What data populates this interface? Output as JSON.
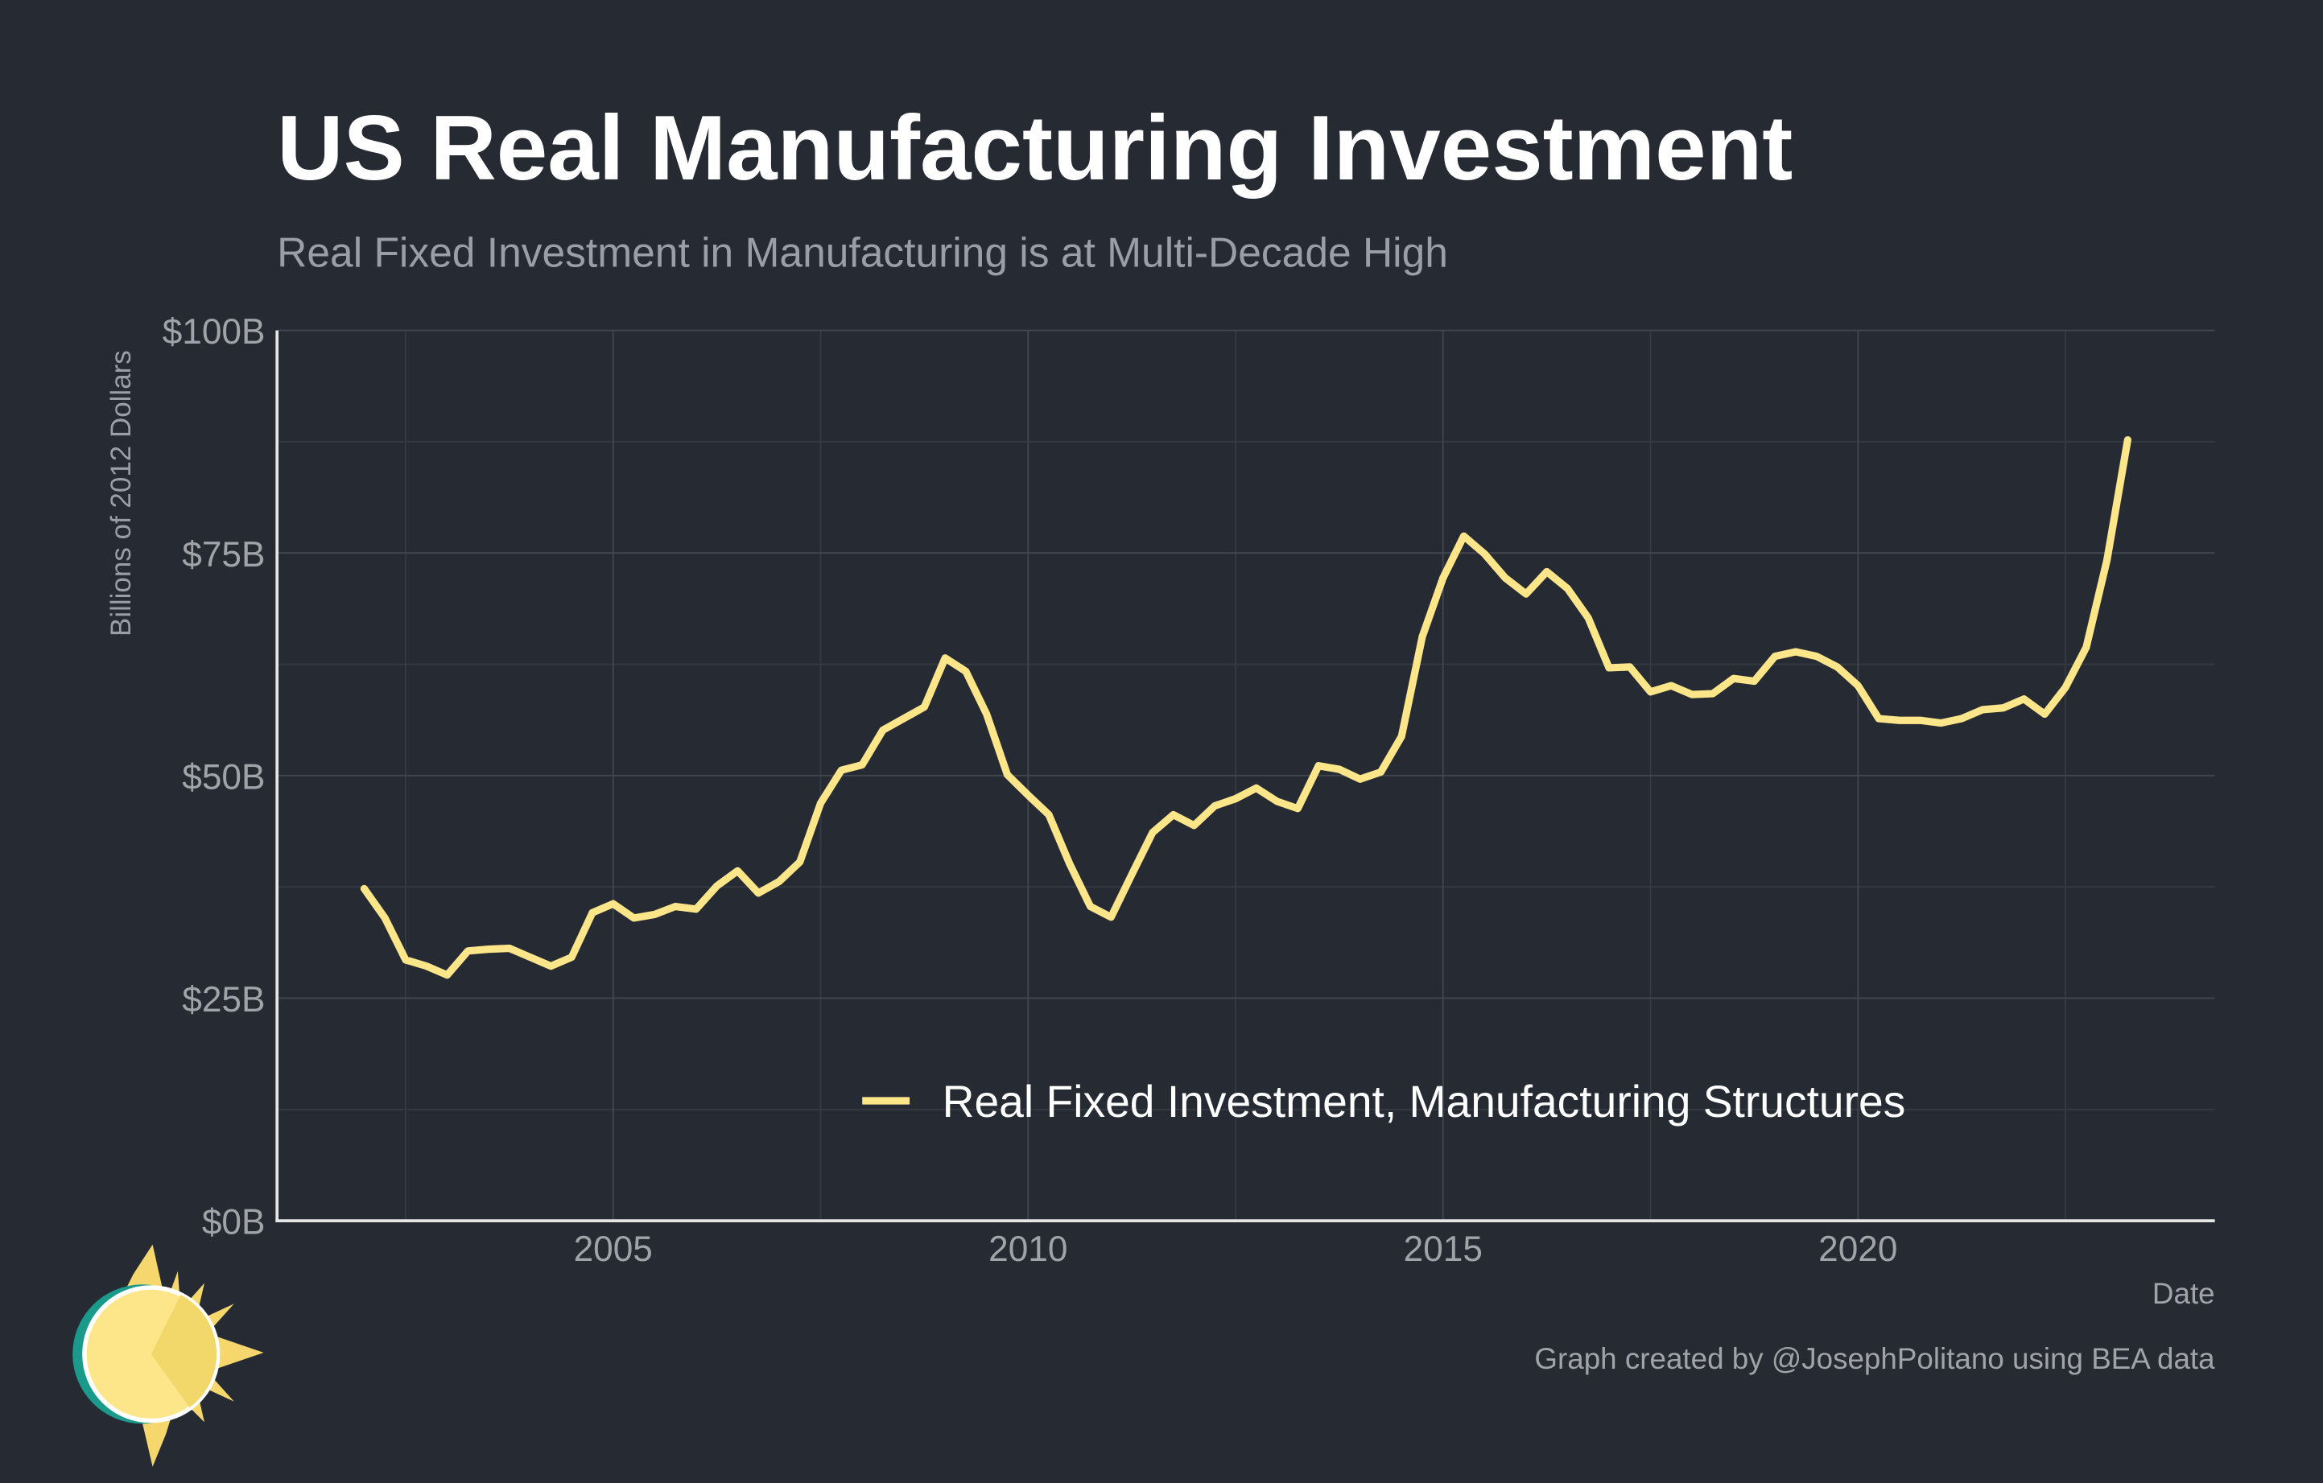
{
  "chart_data": {
    "type": "line",
    "title": "US Real Manufacturing Investment",
    "subtitle": "Real Fixed Investment in Manufacturing is at Multi-Decade High",
    "y_label": "Billions of 2012 Dollars",
    "x_label": "Date",
    "caption": "Graph created by @JosephPolitano using BEA data",
    "x": [
      2002,
      2002.25,
      2002.5,
      2002.75,
      2003,
      2003.25,
      2003.5,
      2003.75,
      2004,
      2004.25,
      2004.5,
      2004.75,
      2005,
      2005.25,
      2005.5,
      2005.75,
      2006,
      2006.25,
      2006.5,
      2006.75,
      2007,
      2007.25,
      2007.5,
      2007.75,
      2008,
      2008.25,
      2008.5,
      2008.75,
      2009,
      2009.25,
      2009.5,
      2009.75,
      2010,
      2010.25,
      2010.5,
      2010.75,
      2011,
      2011.25,
      2011.5,
      2011.75,
      2012,
      2012.25,
      2012.5,
      2012.75,
      2013,
      2013.25,
      2013.5,
      2013.75,
      2014,
      2014.25,
      2014.5,
      2014.75,
      2015,
      2015.25,
      2015.5,
      2015.75,
      2016,
      2016.25,
      2016.5,
      2016.75,
      2017,
      2017.25,
      2017.5,
      2017.75,
      2018,
      2018.25,
      2018.5,
      2018.75,
      2019,
      2019.25,
      2019.5,
      2019.75,
      2020,
      2020.25,
      2020.5,
      2020.75,
      2021,
      2021.25,
      2021.5,
      2021.75,
      2022,
      2022.25,
      2022.5,
      2022.75,
      2023,
      2023.25
    ],
    "series": [
      {
        "name": "Real Fixed Investment, Manufacturing Structures",
        "color": "#fde68a",
        "values": [
          37.3,
          34,
          29.3,
          28.6,
          27.6,
          30.3,
          30.5,
          30.6,
          29.6,
          28.6,
          29.6,
          34.6,
          35.6,
          34,
          34.4,
          35.3,
          35,
          37.6,
          39.3,
          36.8,
          38.1,
          40.3,
          46.9,
          50.6,
          51.2,
          55.1,
          56.4,
          57.7,
          63.2,
          61.7,
          56.9,
          50.1,
          47.8,
          45.6,
          40.1,
          35.3,
          34.1,
          38.9,
          43.6,
          45.6,
          44.4,
          46.6,
          47.4,
          48.6,
          47.1,
          46.3,
          51.1,
          50.7,
          49.6,
          50.4,
          54.4,
          65.6,
          72.2,
          76.9,
          74.9,
          72.2,
          70.4,
          72.9,
          71,
          67.7,
          62.1,
          62.2,
          59.4,
          60.1,
          59.1,
          59.2,
          60.9,
          60.6,
          63.4,
          63.9,
          63.4,
          62.2,
          60.1,
          56.4,
          56.2,
          56.2,
          55.9,
          56.4,
          57.4,
          57.6,
          58.6,
          56.9,
          59.9,
          64.4,
          74.2,
          87.7
        ]
      }
    ],
    "xlim": [
      2000.95,
      2024.3
    ],
    "xticks": [
      2005,
      2010,
      2015,
      2020
    ],
    "ylim": [
      0,
      100
    ],
    "yticks": [
      {
        "value": 0,
        "label": "$0B"
      },
      {
        "value": 25,
        "label": "$25B"
      },
      {
        "value": 50,
        "label": "$50B"
      },
      {
        "value": 75,
        "label": "$75B"
      },
      {
        "value": 100,
        "label": "$100B"
      }
    ],
    "grid": true,
    "legend": "bottom-right"
  }
}
